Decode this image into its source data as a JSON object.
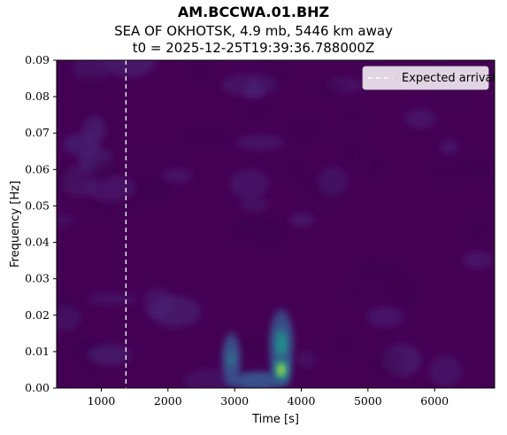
{
  "header": {
    "station": "AM.BCCWA.01.BHZ",
    "event": "SEA OF OKHOTSK, 4.9 mb, 5446 km away",
    "t0": "t0 = 2025-12-25T19:39:36.788000Z"
  },
  "chart_data": {
    "type": "heatmap",
    "xlabel": "Time [s]",
    "ylabel": "Frequency [Hz]",
    "xlim": [
      330,
      6900
    ],
    "ylim": [
      0.0,
      0.09
    ],
    "xticks": [
      1000,
      2000,
      3000,
      4000,
      5000,
      6000
    ],
    "yticks": [
      0.0,
      0.01,
      0.02,
      0.03,
      0.04,
      0.05,
      0.06,
      0.07,
      0.08,
      0.09
    ],
    "ytick_labels": [
      "0.00",
      "0.01",
      "0.02",
      "0.03",
      "0.04",
      "0.05",
      "0.06",
      "0.07",
      "0.08",
      "0.09"
    ],
    "colormap": "viridis",
    "expected_arrival": 1370,
    "legend": {
      "label": "Expected arrival",
      "placement": "top-right"
    },
    "energy_blobs": [
      {
        "t": 3700,
        "f": 0.005,
        "dt": 120,
        "df": 0.0035,
        "amp": 1.0
      },
      {
        "t": 3700,
        "f": 0.012,
        "dt": 150,
        "df": 0.008,
        "amp": 0.42
      },
      {
        "t": 2950,
        "f": 0.008,
        "dt": 110,
        "df": 0.006,
        "amp": 0.28
      },
      {
        "t": 3350,
        "f": 0.002,
        "dt": 400,
        "df": 0.002,
        "amp": 0.22
      }
    ],
    "colors": {
      "arrival_line": "#ffffff",
      "legend_bg": "#efe6f0"
    }
  }
}
